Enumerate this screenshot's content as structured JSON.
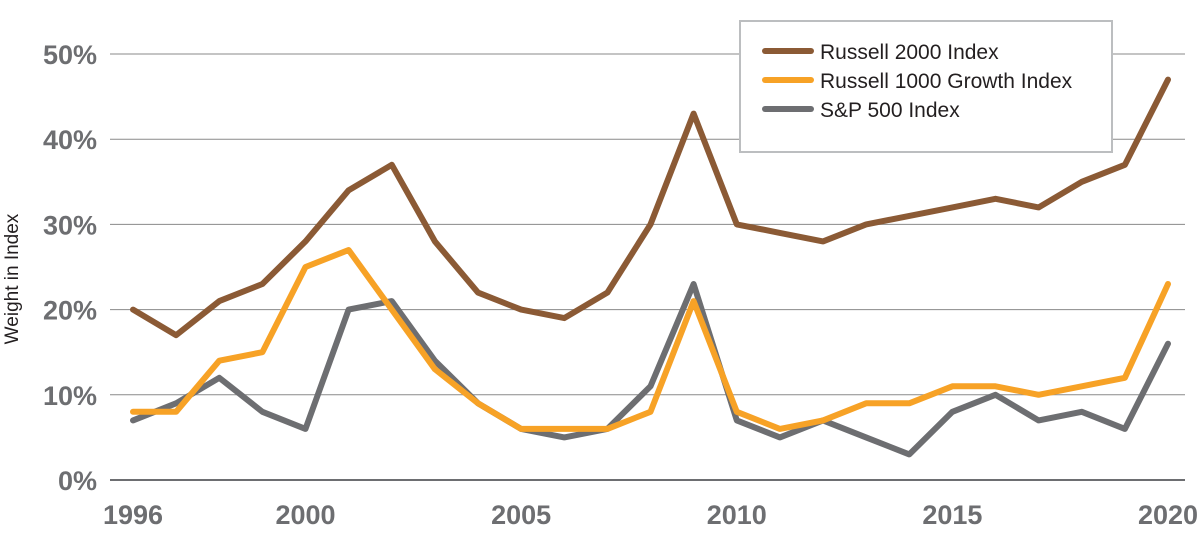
{
  "chart_data": {
    "type": "line",
    "ylabel": "Weight in Index",
    "xlabel": "",
    "x": [
      1996,
      1997,
      1998,
      1999,
      2000,
      2001,
      2002,
      2003,
      2004,
      2005,
      2006,
      2007,
      2008,
      2009,
      2010,
      2011,
      2012,
      2013,
      2014,
      2015,
      2016,
      2017,
      2018,
      2019,
      2020
    ],
    "x_ticks": [
      1996,
      2000,
      2005,
      2010,
      2015,
      2020
    ],
    "x_tick_labels": [
      "1996",
      "2000",
      "2005",
      "2010",
      "2015",
      "2020"
    ],
    "ylim": [
      0,
      50
    ],
    "y_ticks": [
      0,
      10,
      20,
      30,
      40,
      50
    ],
    "y_tick_labels": [
      "0%",
      "10%",
      "20%",
      "30%",
      "40%",
      "50%"
    ],
    "grid": "horizontal",
    "legend_position": "top-right",
    "series": [
      {
        "name": "Russell 2000 Index",
        "color": "#8b5a35",
        "values": [
          20,
          17,
          21,
          23,
          28,
          34,
          37,
          28,
          22,
          20,
          19,
          22,
          30,
          43,
          30,
          29,
          28,
          30,
          31,
          32,
          33,
          32,
          35,
          37,
          47
        ]
      },
      {
        "name": "Russell 1000 Growth Index",
        "color": "#f7a226",
        "values": [
          8,
          8,
          14,
          15,
          25,
          27,
          20,
          13,
          9,
          6,
          6,
          6,
          8,
          21,
          8,
          6,
          7,
          9,
          9,
          11,
          11,
          10,
          11,
          12,
          23
        ]
      },
      {
        "name": "S&P 500 Index",
        "color": "#6d6e71",
        "values": [
          7,
          9,
          12,
          8,
          6,
          20,
          21,
          14,
          9,
          6,
          5,
          6,
          11,
          23,
          7,
          5,
          7,
          5,
          3,
          8,
          10,
          7,
          8,
          6,
          16
        ]
      }
    ]
  }
}
